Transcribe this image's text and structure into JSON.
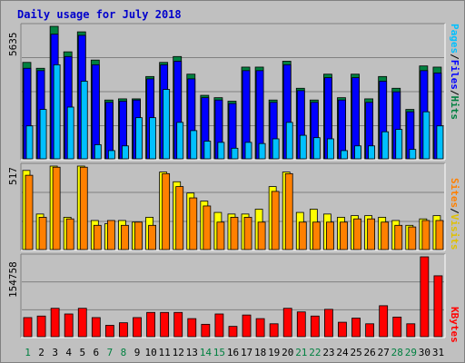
{
  "title": "Daily usage for July 2018",
  "colors": {
    "hits": "#008040",
    "files": "#0000ff",
    "pages": "#00c0ff",
    "visits": "#ffff00",
    "sites": "#ff8000",
    "kbytes": "#ff0000",
    "weekend_day": "#008040",
    "weekday": "#000000",
    "title": "#0000cc"
  },
  "chart_data": [
    {
      "type": "bar",
      "name_key": "hits-files-pages",
      "ymax_label": "5635",
      "ylim": [
        0,
        5635
      ],
      "right_labels": [
        "Pages",
        "/",
        "Files",
        "/",
        "Hits"
      ],
      "categories": [
        "1",
        "2",
        "3",
        "4",
        "5",
        "6",
        "7",
        "8",
        "9",
        "10",
        "11",
        "12",
        "13",
        "14",
        "15",
        "16",
        "17",
        "18",
        "19",
        "20",
        "21",
        "22",
        "23",
        "24",
        "25",
        "26",
        "27",
        "28",
        "29",
        "30",
        "31"
      ],
      "series": [
        {
          "name": "Hits",
          "values": [
            4100,
            3850,
            5635,
            4550,
            5400,
            4200,
            2500,
            2550,
            2550,
            3500,
            4100,
            4350,
            3600,
            2700,
            2600,
            2450,
            3900,
            3900,
            2500,
            4150,
            3000,
            2500,
            3600,
            2600,
            3600,
            2550,
            3500,
            3000,
            2100,
            3950,
            3900
          ]
        },
        {
          "name": "Files",
          "values": [
            3850,
            3750,
            5300,
            4350,
            5250,
            4000,
            2400,
            2450,
            2500,
            3400,
            4000,
            4150,
            3400,
            2600,
            2500,
            2350,
            3750,
            3750,
            2400,
            4000,
            2900,
            2400,
            3450,
            2500,
            3450,
            2400,
            3300,
            2850,
            2000,
            3750,
            3650
          ]
        },
        {
          "name": "Pages",
          "values": [
            1400,
            2100,
            4000,
            2200,
            3300,
            600,
            350,
            550,
            1750,
            1750,
            2950,
            1550,
            1200,
            750,
            700,
            450,
            700,
            650,
            850,
            1550,
            1000,
            900,
            850,
            350,
            550,
            550,
            1150,
            1250,
            400,
            2000,
            1400
          ]
        }
      ]
    },
    {
      "type": "bar",
      "name_key": "visits-sites",
      "ymax_label": "517",
      "ylim": [
        0,
        517
      ],
      "right_labels": [
        "Sites",
        "/",
        "Visits"
      ],
      "categories": [
        "1",
        "2",
        "3",
        "4",
        "5",
        "6",
        "7",
        "8",
        "9",
        "10",
        "11",
        "12",
        "13",
        "14",
        "15",
        "16",
        "17",
        "18",
        "19",
        "20",
        "21",
        "22",
        "23",
        "24",
        "25",
        "26",
        "27",
        "28",
        "29",
        "30",
        "31"
      ],
      "series": [
        {
          "name": "Visits",
          "values": [
            490,
            220,
            517,
            200,
            517,
            180,
            160,
            180,
            170,
            200,
            480,
            420,
            350,
            300,
            230,
            220,
            220,
            250,
            390,
            480,
            230,
            250,
            220,
            200,
            210,
            210,
            200,
            180,
            150,
            190,
            210
          ]
        },
        {
          "name": "Sites",
          "values": [
            460,
            200,
            510,
            190,
            510,
            150,
            180,
            150,
            170,
            150,
            470,
            390,
            320,
            270,
            170,
            200,
            200,
            170,
            360,
            470,
            170,
            170,
            170,
            170,
            190,
            190,
            170,
            150,
            140,
            180,
            180
          ]
        }
      ]
    },
    {
      "type": "bar",
      "name_key": "kbytes",
      "ymax_label": "154758",
      "ylim": [
        0,
        154758
      ],
      "right_labels": [
        "KBytes"
      ],
      "categories": [
        "1",
        "2",
        "3",
        "4",
        "5",
        "6",
        "7",
        "8",
        "9",
        "10",
        "11",
        "12",
        "13",
        "14",
        "15",
        "16",
        "17",
        "18",
        "19",
        "20",
        "21",
        "22",
        "23",
        "24",
        "25",
        "26",
        "27",
        "28",
        "29",
        "30",
        "31"
      ],
      "series": [
        {
          "name": "KBytes",
          "values": [
            37000,
            40000,
            55000,
            44000,
            55000,
            37000,
            22000,
            27000,
            37000,
            47000,
            47000,
            47000,
            35000,
            24000,
            44000,
            20000,
            42000,
            35000,
            25000,
            55000,
            48000,
            40000,
            53000,
            28000,
            36000,
            25000,
            60000,
            38000,
            25000,
            154758,
            118000
          ]
        }
      ]
    }
  ]
}
